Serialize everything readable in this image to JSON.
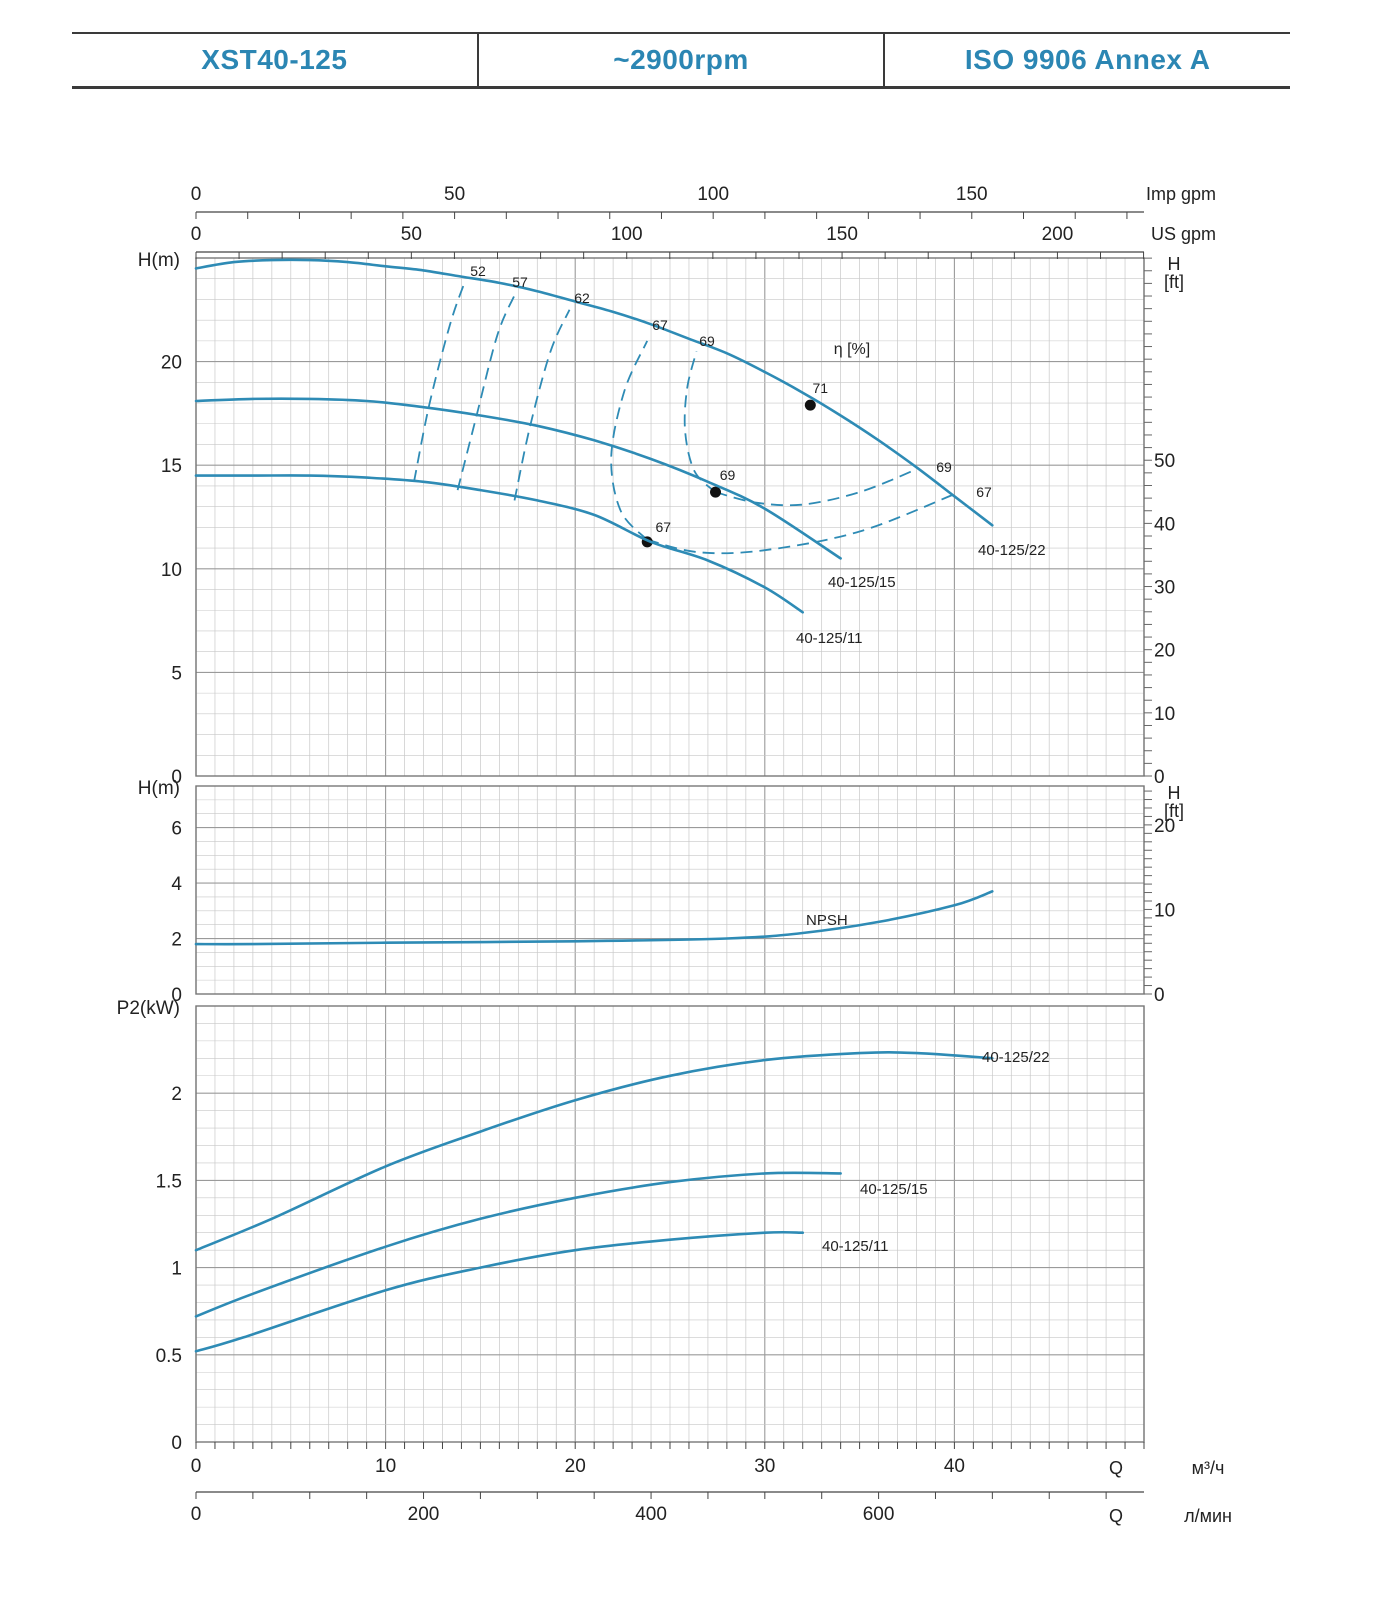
{
  "header": {
    "model": "XST40-125",
    "speed": "~2900rpm",
    "standard": "ISO 9906   Annex A"
  },
  "colors": {
    "curve": "#2e8bb5",
    "grid": "#c8c8c8",
    "grid_major": "#9a9a9a",
    "header_text": "#2b86b3"
  },
  "chart_data": [
    {
      "type": "line",
      "panel": "head",
      "ylabel": "H(m)",
      "ylabel_right": "H\n[ft]",
      "xlim": [
        0,
        50
      ],
      "ylim": [
        0,
        25
      ],
      "y_ticks": [
        0,
        5,
        10,
        15,
        20
      ],
      "y_ticks_right": [
        0,
        10,
        20,
        30,
        40,
        50
      ],
      "efficiency_label": "η [%]",
      "series": [
        {
          "name": "40-125/22",
          "x": [
            0,
            2,
            4,
            6,
            8,
            10,
            12,
            14,
            16,
            18,
            20,
            22,
            24,
            26,
            28,
            30,
            32,
            34,
            36,
            38,
            40,
            42
          ],
          "values": [
            24.5,
            24.8,
            24.9,
            24.9,
            24.8,
            24.6,
            24.4,
            24.1,
            23.8,
            23.4,
            22.9,
            22.4,
            21.8,
            21.1,
            20.4,
            19.5,
            18.5,
            17.4,
            16.2,
            14.9,
            13.5,
            12.1
          ]
        },
        {
          "name": "40-125/15",
          "x": [
            0,
            3,
            6,
            9,
            12,
            15,
            18,
            21,
            24,
            27,
            30,
            34
          ],
          "values": [
            18.1,
            18.2,
            18.2,
            18.1,
            17.8,
            17.4,
            16.9,
            16.2,
            15.3,
            14.2,
            12.9,
            10.5
          ]
        },
        {
          "name": "40-125/11",
          "x": [
            0,
            3,
            6,
            9,
            12,
            15,
            18,
            21,
            24,
            27,
            30,
            32
          ],
          "values": [
            14.5,
            14.5,
            14.5,
            14.4,
            14.2,
            13.8,
            13.3,
            12.6,
            11.3,
            10.4,
            9.1,
            7.9
          ]
        }
      ],
      "efficiency_iso_lines": [
        {
          "label": "52",
          "x": [
            11.5,
            12.3,
            13.4,
            14.2
          ],
          "values": [
            14.2,
            17.9,
            21.8,
            23.9
          ]
        },
        {
          "label": "57",
          "x": [
            13.8,
            14.8,
            15.9,
            16.8
          ],
          "values": [
            13.8,
            17.4,
            21.3,
            23.2
          ]
        },
        {
          "label": "62",
          "x": [
            16.8,
            17.6,
            18.7,
            19.7
          ],
          "values": [
            13.3,
            16.8,
            20.5,
            22.5
          ]
        },
        {
          "label": "67",
          "x": [
            23.8,
            22.4,
            21.9,
            22.6,
            23.8
          ],
          "values": [
            11.4,
            12.8,
            15.4,
            18.6,
            21.0
          ]
        },
        {
          "label": "69",
          "x": [
            27.4,
            26.3,
            25.8,
            25.9,
            26.4
          ],
          "values": [
            13.7,
            14.7,
            16.6,
            18.7,
            20.5
          ]
        },
        {
          "label": "69",
          "x": [
            27.4,
            29.5,
            32,
            35,
            38
          ],
          "values": [
            13.7,
            13.2,
            13.1,
            13.7,
            14.8
          ]
        },
        {
          "label": "67",
          "x": [
            23.8,
            26.5,
            30,
            35,
            40
          ],
          "values": [
            11.4,
            10.8,
            10.9,
            11.8,
            13.6
          ]
        }
      ],
      "efficiency_points": [
        {
          "label": "71",
          "x": 32.4,
          "y": 17.9
        },
        {
          "label": "69",
          "x": 27.4,
          "y": 13.7
        },
        {
          "label": "67",
          "x": 23.8,
          "y": 11.3
        }
      ]
    },
    {
      "type": "line",
      "panel": "npsh",
      "ylabel": "H(m)",
      "ylabel_right": "H\n[ft]",
      "xlim": [
        0,
        50
      ],
      "ylim": [
        0,
        7.5
      ],
      "y_ticks": [
        0,
        2,
        4,
        6
      ],
      "y_ticks_right": [
        0,
        10,
        20
      ],
      "series": [
        {
          "name": "NPSH",
          "x": [
            0,
            3,
            10,
            20,
            28,
            32,
            36,
            40,
            42
          ],
          "values": [
            1.8,
            1.8,
            1.85,
            1.9,
            2.0,
            2.2,
            2.6,
            3.2,
            3.7
          ]
        }
      ]
    },
    {
      "type": "line",
      "panel": "power",
      "ylabel": "P2(kW)",
      "xlim": [
        0,
        50
      ],
      "ylim": [
        0,
        2.5
      ],
      "y_ticks": [
        "0",
        "0.5",
        "1",
        "1.5",
        "2"
      ],
      "series": [
        {
          "name": "40-125/22",
          "x": [
            0,
            4,
            10,
            15,
            20,
            25,
            30,
            35,
            38,
            42
          ],
          "values": [
            1.1,
            1.28,
            1.58,
            1.78,
            1.96,
            2.1,
            2.19,
            2.23,
            2.23,
            2.2
          ]
        },
        {
          "name": "40-125/15",
          "x": [
            0,
            3,
            10,
            15,
            20,
            25,
            30,
            34
          ],
          "values": [
            0.72,
            0.85,
            1.12,
            1.28,
            1.4,
            1.49,
            1.54,
            1.54
          ]
        },
        {
          "name": "40-125/11",
          "x": [
            0,
            2.5,
            10,
            15,
            20,
            25,
            30,
            32
          ],
          "values": [
            0.52,
            0.6,
            0.87,
            1.0,
            1.1,
            1.16,
            1.2,
            1.2
          ]
        }
      ]
    }
  ],
  "axes": {
    "imp_gpm": {
      "unit": "Imp gpm",
      "ticks": [
        "0",
        "50",
        "100",
        "150"
      ],
      "max": 183.3
    },
    "us_gpm": {
      "unit": "US gpm",
      "ticks": [
        "0",
        "50",
        "100",
        "150",
        "200"
      ],
      "max": 220.1
    },
    "m3h": {
      "q_label": "Q",
      "unit": "м³/ч",
      "ticks": [
        "0",
        "10",
        "20",
        "30",
        "40"
      ]
    },
    "lmin": {
      "q_label": "Q",
      "unit": "л/мин",
      "ticks": [
        "0",
        "200",
        "400",
        "600"
      ],
      "max": 833.3
    }
  }
}
